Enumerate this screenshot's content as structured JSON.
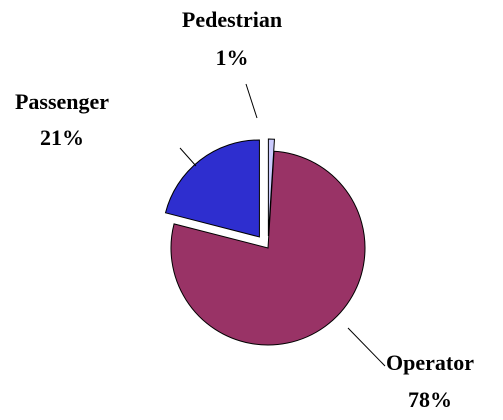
{
  "chart_data": {
    "type": "pie",
    "categories": [
      "Operator",
      "Passenger",
      "Pedestrian"
    ],
    "values": [
      78,
      21,
      1
    ],
    "value_labels": [
      "78%",
      "21%",
      "1%"
    ],
    "colors": [
      "#993366",
      "#2e2ecf",
      "#ccccff"
    ]
  }
}
